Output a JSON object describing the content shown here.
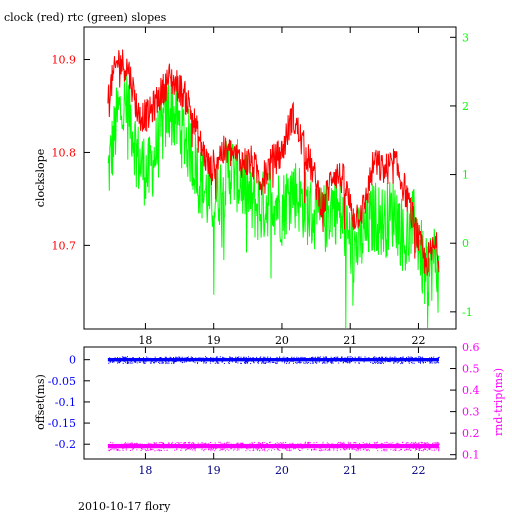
{
  "title": "clock (red) rtc (green) slopes",
  "footer": "2010-10-17 flory",
  "colors": {
    "clock": "#ff0000",
    "rtc": "#00ff00",
    "offset": "#0000ff",
    "rndtrip": "#ff00ff",
    "axis": "#000000",
    "xtick_top": "#000000",
    "xtick_bottom": "#000080"
  },
  "chart_data": [
    {
      "type": "line",
      "ylabel_left": "clockslope",
      "xlim": [
        17.1,
        22.55
      ],
      "ylim_left": [
        10.61,
        10.935
      ],
      "ylim_right": [
        -1.25,
        3.15
      ],
      "xticks": [
        18,
        19,
        20,
        21,
        22
      ],
      "yticks_left": [
        10.7,
        10.8,
        10.9
      ],
      "yticks_right": [
        -1,
        0,
        1,
        2,
        3
      ],
      "series": [
        {
          "axis": "left",
          "x": [
            17.45,
            17.6,
            17.75,
            17.9,
            18.05,
            18.2,
            18.35,
            18.5,
            18.65,
            18.8,
            18.95,
            19.1,
            19.25,
            19.4,
            19.55,
            19.7,
            19.85,
            20.0,
            20.15,
            20.3,
            20.45,
            20.6,
            20.75,
            20.9,
            21.05,
            21.2,
            21.35,
            21.5,
            21.65,
            21.8,
            21.95,
            22.1,
            22.25,
            22.3
          ],
          "y": [
            10.86,
            10.9,
            10.89,
            10.84,
            10.84,
            10.86,
            10.88,
            10.87,
            10.85,
            10.81,
            10.78,
            10.8,
            10.8,
            10.79,
            10.79,
            10.77,
            10.79,
            10.8,
            10.84,
            10.81,
            10.78,
            10.74,
            10.78,
            10.77,
            10.73,
            10.74,
            10.79,
            10.78,
            10.79,
            10.76,
            10.72,
            10.68,
            10.7,
            10.69
          ]
        },
        {
          "axis": "right",
          "x": [
            17.45,
            17.6,
            17.75,
            17.9,
            18.05,
            18.2,
            18.35,
            18.5,
            18.65,
            18.8,
            18.95,
            19.1,
            19.25,
            19.4,
            19.55,
            19.7,
            19.85,
            20.0,
            20.15,
            20.3,
            20.45,
            20.6,
            20.75,
            20.9,
            21.05,
            21.2,
            21.35,
            21.5,
            21.65,
            21.8,
            21.95,
            22.1,
            22.25,
            22.3
          ],
          "y": [
            1.0,
            1.9,
            2.0,
            1.2,
            1.0,
            1.5,
            2.0,
            1.7,
            1.4,
            0.9,
            0.6,
            0.8,
            1.1,
            0.9,
            0.6,
            0.5,
            0.7,
            0.5,
            0.8,
            0.6,
            0.4,
            0.3,
            0.6,
            0.3,
            -0.1,
            0.1,
            0.4,
            0.3,
            0.5,
            0.0,
            0.3,
            -0.5,
            -0.2,
            -0.6
          ]
        }
      ]
    },
    {
      "type": "scatter",
      "ylabel_left": "offset(ms)",
      "ylabel_right": "rnd-trip(ms)",
      "xlim": [
        17.1,
        22.55
      ],
      "ylim_left": [
        -0.235,
        0.03
      ],
      "ylim_right": [
        0.08,
        0.6
      ],
      "xticks": [
        18,
        19,
        20,
        21,
        22
      ],
      "yticks_left": [
        0,
        -0.05,
        -0.1,
        -0.15,
        -0.2
      ],
      "yticks_right": [
        0.1,
        0.2,
        0.3,
        0.4,
        0.5,
        0.6
      ],
      "series": [
        {
          "axis": "left",
          "x": [
            17.45,
            22.3
          ],
          "y": [
            0.0,
            0.0
          ],
          "spread": 0.004
        },
        {
          "axis": "right",
          "x": [
            17.45,
            22.3
          ],
          "y": [
            0.14,
            0.14
          ],
          "spread": 0.01
        }
      ]
    }
  ]
}
